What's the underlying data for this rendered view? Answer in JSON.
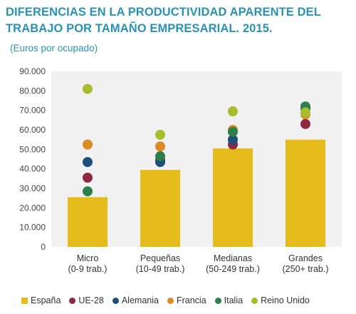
{
  "header": {
    "title": "DIFERENCIAS EN LA PRODUCTIVIDAD APARENTE DEL TRABAJO POR TAMAÑO EMPRESARIAL. 2015.",
    "subtitle": "(Euros por ocupado)"
  },
  "chart_data": {
    "type": "bar",
    "title": "DIFERENCIAS EN LA PRODUCTIVIDAD APARENTE DEL TRABAJO POR TAMAÑO EMPRESARIAL. 2015.",
    "subtitle": "(Euros por ocupado)",
    "categories": [
      [
        "Micro",
        "(0-9 trab.)"
      ],
      [
        "Pequeñas",
        "(10-49 trab.)"
      ],
      [
        "Medianas",
        "(50-249 trab.)"
      ],
      [
        "Grandes",
        "(250+ trab.)"
      ]
    ],
    "ylim": [
      0,
      90000
    ],
    "yticks": [
      "0",
      "10.000",
      "20.000",
      "30.000",
      "40.000",
      "50.000",
      "60.000",
      "70.000",
      "80.000",
      "90.000"
    ],
    "ytick_values": [
      0,
      10000,
      20000,
      30000,
      40000,
      50000,
      60000,
      70000,
      80000,
      90000
    ],
    "grid": false,
    "legend_position": "bottom",
    "bar_series": {
      "name": "España",
      "color": "#e5bc1b",
      "values": [
        25500,
        39500,
        50500,
        55000
      ]
    },
    "point_series": [
      {
        "name": "UE-28",
        "color": "#8e2740",
        "values": [
          35500,
          44500,
          52500,
          63000
        ]
      },
      {
        "name": "Alemania",
        "color": "#1c4f7a",
        "values": [
          43500,
          43500,
          55000,
          71000
        ]
      },
      {
        "name": "Francia",
        "color": "#db8a26",
        "values": [
          52500,
          51500,
          60000,
          68000
        ]
      },
      {
        "name": "Italia",
        "color": "#2d7f4b",
        "values": [
          28500,
          46500,
          59000,
          72000
        ]
      },
      {
        "name": "Reino Unido",
        "color": "#a8bd2c",
        "values": [
          81000,
          57500,
          69500,
          69000
        ]
      }
    ]
  }
}
